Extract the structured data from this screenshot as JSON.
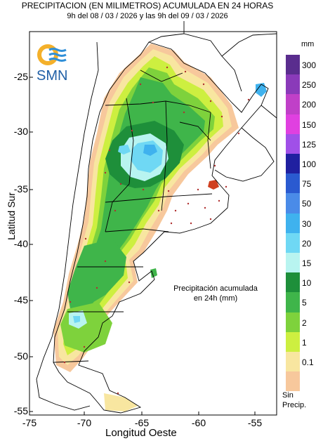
{
  "header": {
    "title": "PRECIPITACION (EN MILIMETROS) ACUMULADA EN 24 HORAS",
    "period": "9h del 08 / 03 / 2026  y las 9h del 09 / 03 / 2026"
  },
  "logo": {
    "text": "SMN"
  },
  "axes": {
    "xlabel": "Longitud Oeste",
    "ylabel": "Latitud Sur",
    "xticks": [
      "-75",
      "-70",
      "-65",
      "-60",
      "-55"
    ],
    "yticks": [
      "-25",
      "-30",
      "-35",
      "-40",
      "-45",
      "-50",
      "-55"
    ],
    "xlim": [
      -75,
      -52.5
    ],
    "ylim": [
      -55,
      -22
    ]
  },
  "annotation": {
    "line1": "Precipitación acumulada",
    "line2": "en 24h (mm)"
  },
  "legend": {
    "unit": "mm",
    "no_precip_label_1": "Sin",
    "no_precip_label_2": "Precip.",
    "classes": [
      {
        "label": "300",
        "color": "#5a2d8e"
      },
      {
        "label": "250",
        "color": "#8a3ab9"
      },
      {
        "label": "200",
        "color": "#c040c8"
      },
      {
        "label": "150",
        "color": "#e040e0"
      },
      {
        "label": "125",
        "color": "#a050e8"
      },
      {
        "label": "100",
        "color": "#2020a0"
      },
      {
        "label": "75",
        "color": "#2a5ad0"
      },
      {
        "label": "50",
        "color": "#4a8be8"
      },
      {
        "label": "30",
        "color": "#3fb2ee"
      },
      {
        "label": "20",
        "color": "#6fd8f4"
      },
      {
        "label": "15",
        "color": "#b8f4f0"
      },
      {
        "label": "10",
        "color": "#1e8f3a"
      },
      {
        "label": "5",
        "color": "#3fb54a"
      },
      {
        "label": "2",
        "color": "#7ed23c"
      },
      {
        "label": "1",
        "color": "#cdef40"
      },
      {
        "label": "0.1",
        "color": "#f8e6a0"
      },
      {
        "label": "",
        "color": "#f7c89c"
      }
    ]
  },
  "colors": {
    "land": "#ffffff",
    "border": "#000000",
    "station": "#b03030"
  }
}
